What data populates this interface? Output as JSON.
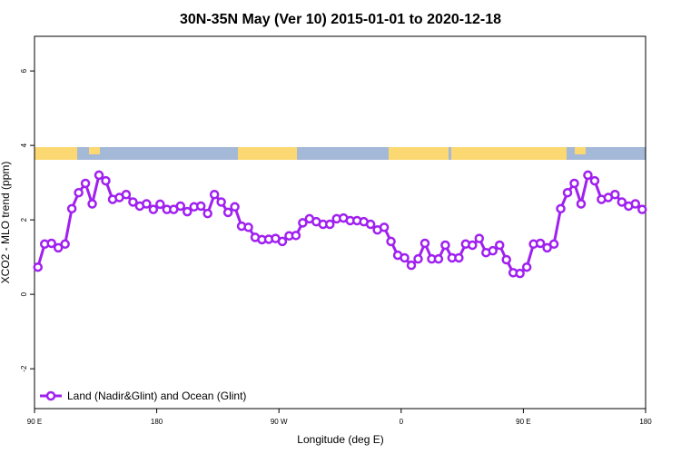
{
  "chart_data": {
    "type": "line",
    "title": "30N-35N May (Ver 10)   2015-01-01 to 2020-12-18",
    "x_label": "Longitude (deg E)",
    "y_label": "XCO2 - MLO trend (ppm)",
    "xlim": [
      90,
      540
    ],
    "ylim": [
      -3.07,
      6.93
    ],
    "xticks": [
      {
        "value": 90,
        "label": "90 E"
      },
      180,
      {
        "value": 270,
        "label": "90 W"
      },
      {
        "value": 360,
        "label": "0"
      },
      {
        "value": 450,
        "label": "90 E"
      },
      {
        "value": 540,
        "label": "180"
      }
    ],
    "yticks": [
      -2,
      0,
      2,
      4,
      6
    ],
    "legend": "bottom-left",
    "x": [
      92.5,
      97.5,
      102.5,
      107.5,
      112.5,
      117.5,
      122.5,
      127.5,
      132.5,
      137.5,
      142.5,
      147.5,
      152.5,
      157.5,
      162.5,
      167.5,
      172.5,
      177.5,
      182.5,
      187.5,
      192.5,
      197.5,
      202.5,
      207.5,
      212.5,
      217.5,
      222.5,
      227.5,
      232.5,
      237.5,
      242.5,
      247.5,
      252.5,
      257.5,
      262.5,
      267.5,
      272.5,
      277.5,
      282.5,
      287.5,
      292.5,
      297.5,
      302.5,
      307.5,
      312.5,
      317.5,
      322.5,
      327.5,
      332.5,
      337.5,
      342.5,
      347.5,
      352.5,
      357.5,
      362.5,
      367.5,
      372.5,
      377.5,
      382.5,
      387.5,
      392.5,
      397.5,
      402.5,
      407.5,
      412.5,
      417.5,
      422.5,
      427.5,
      432.5,
      437.5,
      442.5,
      447.5,
      452.5,
      457.5,
      462.5,
      467.5,
      472.5,
      477.5,
      482.5,
      487.5,
      492.5,
      497.5,
      502.5,
      507.5,
      512.5,
      517.5,
      522.5,
      527.5,
      532.5,
      537.5
    ],
    "series": [
      {
        "name": "Land (Nadir&Glint) and Ocean (Glint)",
        "color": "#a020f0",
        "values": [
          0.73,
          1.35,
          1.37,
          1.25,
          1.35,
          2.3,
          2.73,
          2.98,
          2.43,
          3.2,
          3.05,
          2.55,
          2.6,
          2.68,
          2.48,
          2.37,
          2.43,
          2.28,
          2.42,
          2.28,
          2.28,
          2.37,
          2.22,
          2.35,
          2.37,
          2.17,
          2.68,
          2.48,
          2.2,
          2.35,
          1.83,
          1.8,
          1.53,
          1.47,
          1.48,
          1.5,
          1.42,
          1.57,
          1.58,
          1.92,
          2.03,
          1.95,
          1.88,
          1.88,
          2.03,
          2.05,
          1.98,
          1.98,
          1.95,
          1.88,
          1.73,
          1.8,
          1.42,
          1.05,
          0.98,
          0.78,
          0.95,
          1.37,
          0.95,
          0.95,
          1.32,
          0.98,
          0.98,
          1.35,
          1.32,
          1.5,
          1.12,
          1.17,
          1.32,
          0.93,
          0.58,
          0.56,
          0.73,
          1.35,
          1.37,
          1.25,
          1.35,
          2.3,
          2.73,
          2.98,
          2.43,
          3.2,
          3.05,
          2.55,
          2.6,
          2.68,
          2.48,
          2.37,
          2.43,
          2.28
        ]
      }
    ]
  }
}
